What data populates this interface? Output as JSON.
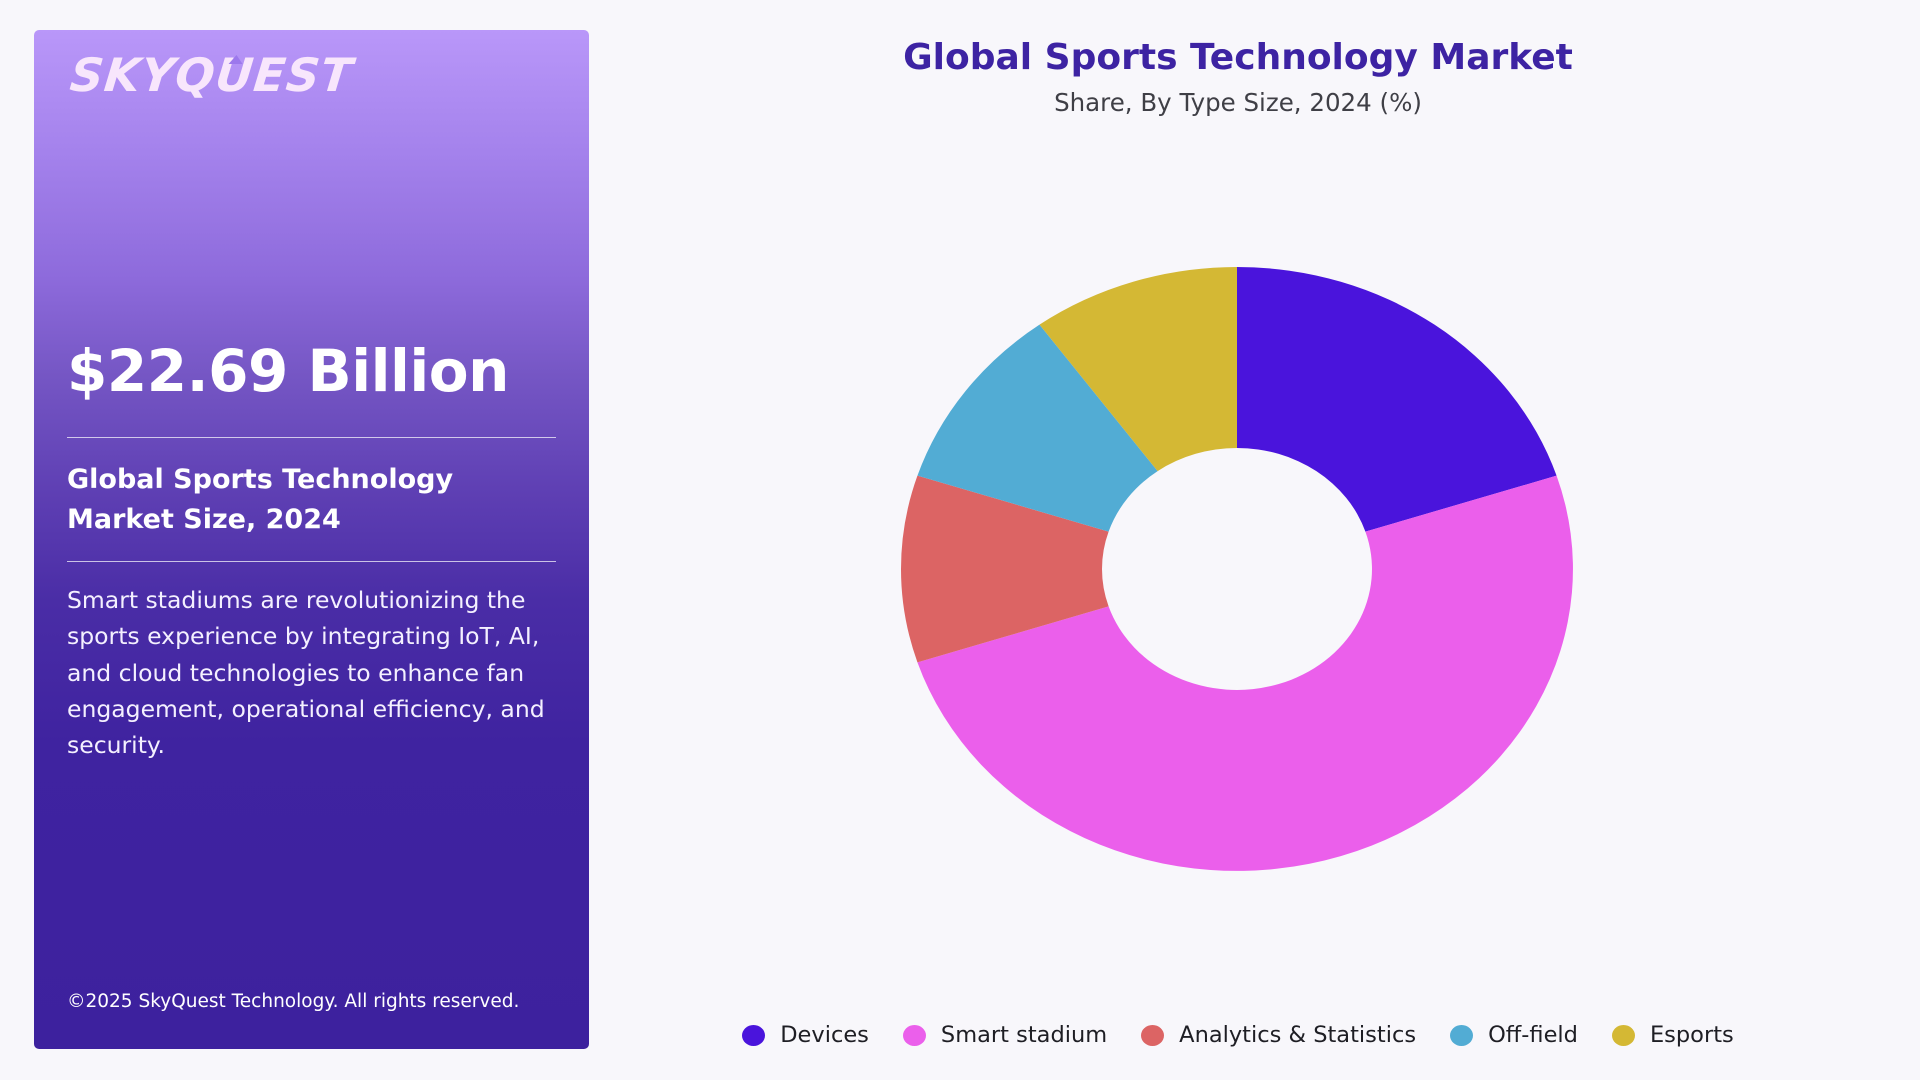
{
  "brand": {
    "logo_text_before": "SKYQ",
    "logo_text_u": "U",
    "logo_text_after": "EST"
  },
  "card": {
    "amount": "$22.69 Billion",
    "market_label": "Global Sports Technology Market Size, 2024",
    "description": "Smart stadiums are revolutionizing the sports experience by integrating IoT, AI, and cloud technologies to enhance fan engagement, operational efficiency, and security.",
    "copyright": "©2025 SkyQuest Technology. All rights reserved."
  },
  "colors": {
    "title": "#3D23A3",
    "card_top": "#B997F9",
    "card_bottom": "#3D219E",
    "background": "#F8F7FB"
  },
  "chart_data": {
    "type": "pie",
    "variant": "donut",
    "title": "Global Sports Technology Market",
    "subtitle": "Share, By Type Size, 2024 (%)",
    "categories": [
      "Devices",
      "Smart stadium",
      "Analytics & Statistics",
      "Off-field",
      "Esports"
    ],
    "values": [
      20,
      50,
      10,
      10,
      10
    ],
    "unit": "%",
    "colors": [
      "#4A14DC",
      "#EB5FEB",
      "#DC6464",
      "#52ACD4",
      "#D4B834"
    ],
    "start_angle": "12 o'clock",
    "direction": "clockwise",
    "legend_position": "bottom",
    "data_labels": false,
    "legend": [
      {
        "label": "Devices",
        "color": "#4A14DC"
      },
      {
        "label": "Smart stadium",
        "color": "#EB5FEB"
      },
      {
        "label": "Analytics & Statistics",
        "color": "#DC6464"
      },
      {
        "label": "Off-field",
        "color": "#52ACD4"
      },
      {
        "label": "Esports",
        "color": "#D4B834"
      }
    ]
  }
}
